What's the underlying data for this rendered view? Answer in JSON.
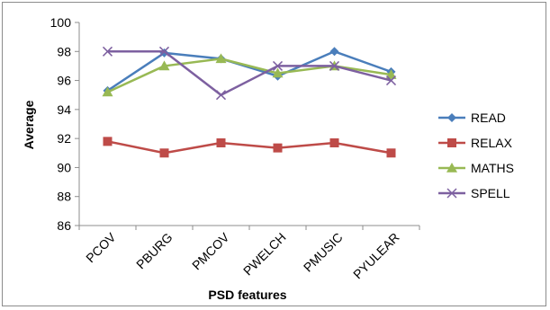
{
  "chart_data": {
    "type": "line",
    "title": "",
    "xlabel": "PSD features",
    "ylabel": "Average",
    "ylim": [
      86,
      100
    ],
    "yticks": [
      86,
      88,
      90,
      92,
      94,
      96,
      98,
      100
    ],
    "categories": [
      "PCOV",
      "PBURG",
      "PMCOV",
      "PWELCH",
      "PMUSIC",
      "PYULEAR"
    ],
    "grid": false,
    "legend_position": "right",
    "series": [
      {
        "name": "READ",
        "color": "#4a7ebb",
        "marker": "diamond",
        "values": [
          95.3,
          97.9,
          97.5,
          96.3,
          98.0,
          96.6
        ]
      },
      {
        "name": "RELAX",
        "color": "#be4b48",
        "marker": "square",
        "values": [
          91.8,
          91.0,
          91.7,
          91.35,
          91.7,
          91.0
        ]
      },
      {
        "name": "MATHS",
        "color": "#98b954",
        "marker": "triangle",
        "values": [
          95.2,
          97.0,
          97.5,
          96.5,
          97.0,
          96.4
        ]
      },
      {
        "name": "SPELL",
        "color": "#7d60a0",
        "marker": "x",
        "values": [
          98.0,
          98.0,
          95.0,
          97.0,
          97.0,
          96.0
        ]
      }
    ]
  }
}
